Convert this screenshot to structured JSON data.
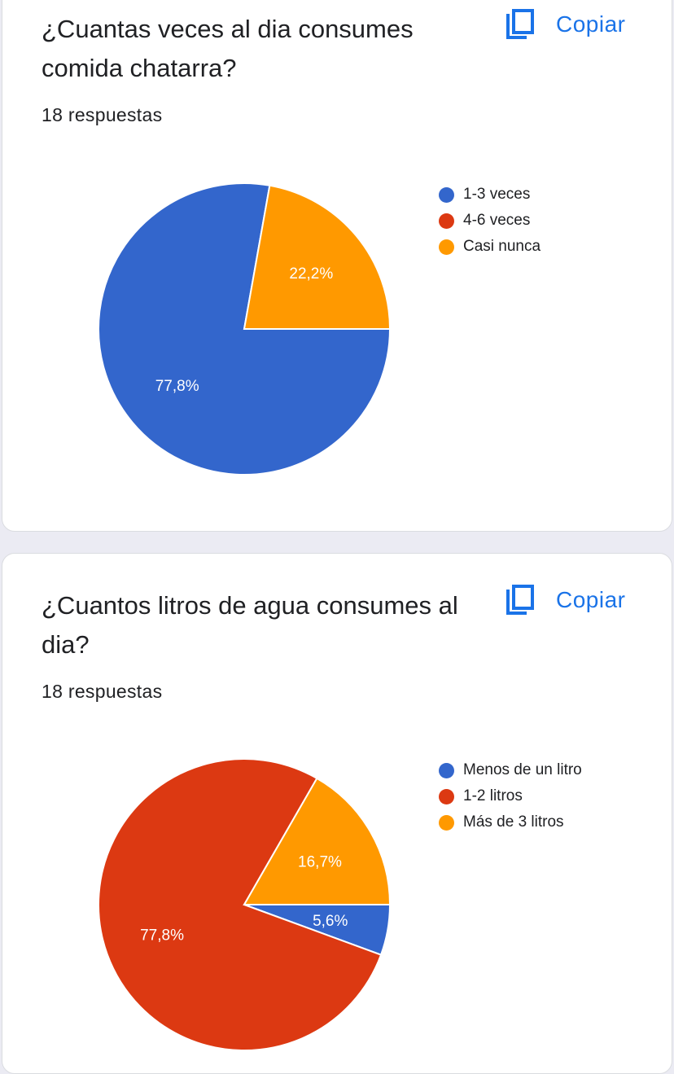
{
  "colors": {
    "blue": "#3366cc",
    "red": "#dc3912",
    "orange": "#ff9900",
    "accent": "#1a73e8"
  },
  "cards": [
    {
      "question": "¿Cuantas veces al dia consumes comida chatarra?",
      "responses": "18 respuestas",
      "copy_label": "Copiar",
      "copy_icon": "copy-icon",
      "chart_data": {
        "type": "pie",
        "labels": [
          "1-3 veces",
          "4-6 veces",
          "Casi nunca"
        ],
        "values": [
          77.8,
          0,
          22.2
        ],
        "value_labels": [
          "77,8%",
          "",
          "22,2%"
        ],
        "colors": [
          "#3366cc",
          "#dc3912",
          "#ff9900"
        ],
        "legend_position": "right"
      }
    },
    {
      "question": "¿Cuantos litros de agua consumes al dia?",
      "responses": "18 respuestas",
      "copy_label": "Copiar",
      "copy_icon": "copy-icon",
      "chart_data": {
        "type": "pie",
        "labels": [
          "Menos de un litro",
          "1-2 litros",
          "Más de 3 litros"
        ],
        "values": [
          5.6,
          77.8,
          16.7
        ],
        "value_labels": [
          "5,6%",
          "77,8%",
          "16,7%"
        ],
        "colors": [
          "#3366cc",
          "#dc3912",
          "#ff9900"
        ],
        "legend_position": "right"
      }
    }
  ]
}
